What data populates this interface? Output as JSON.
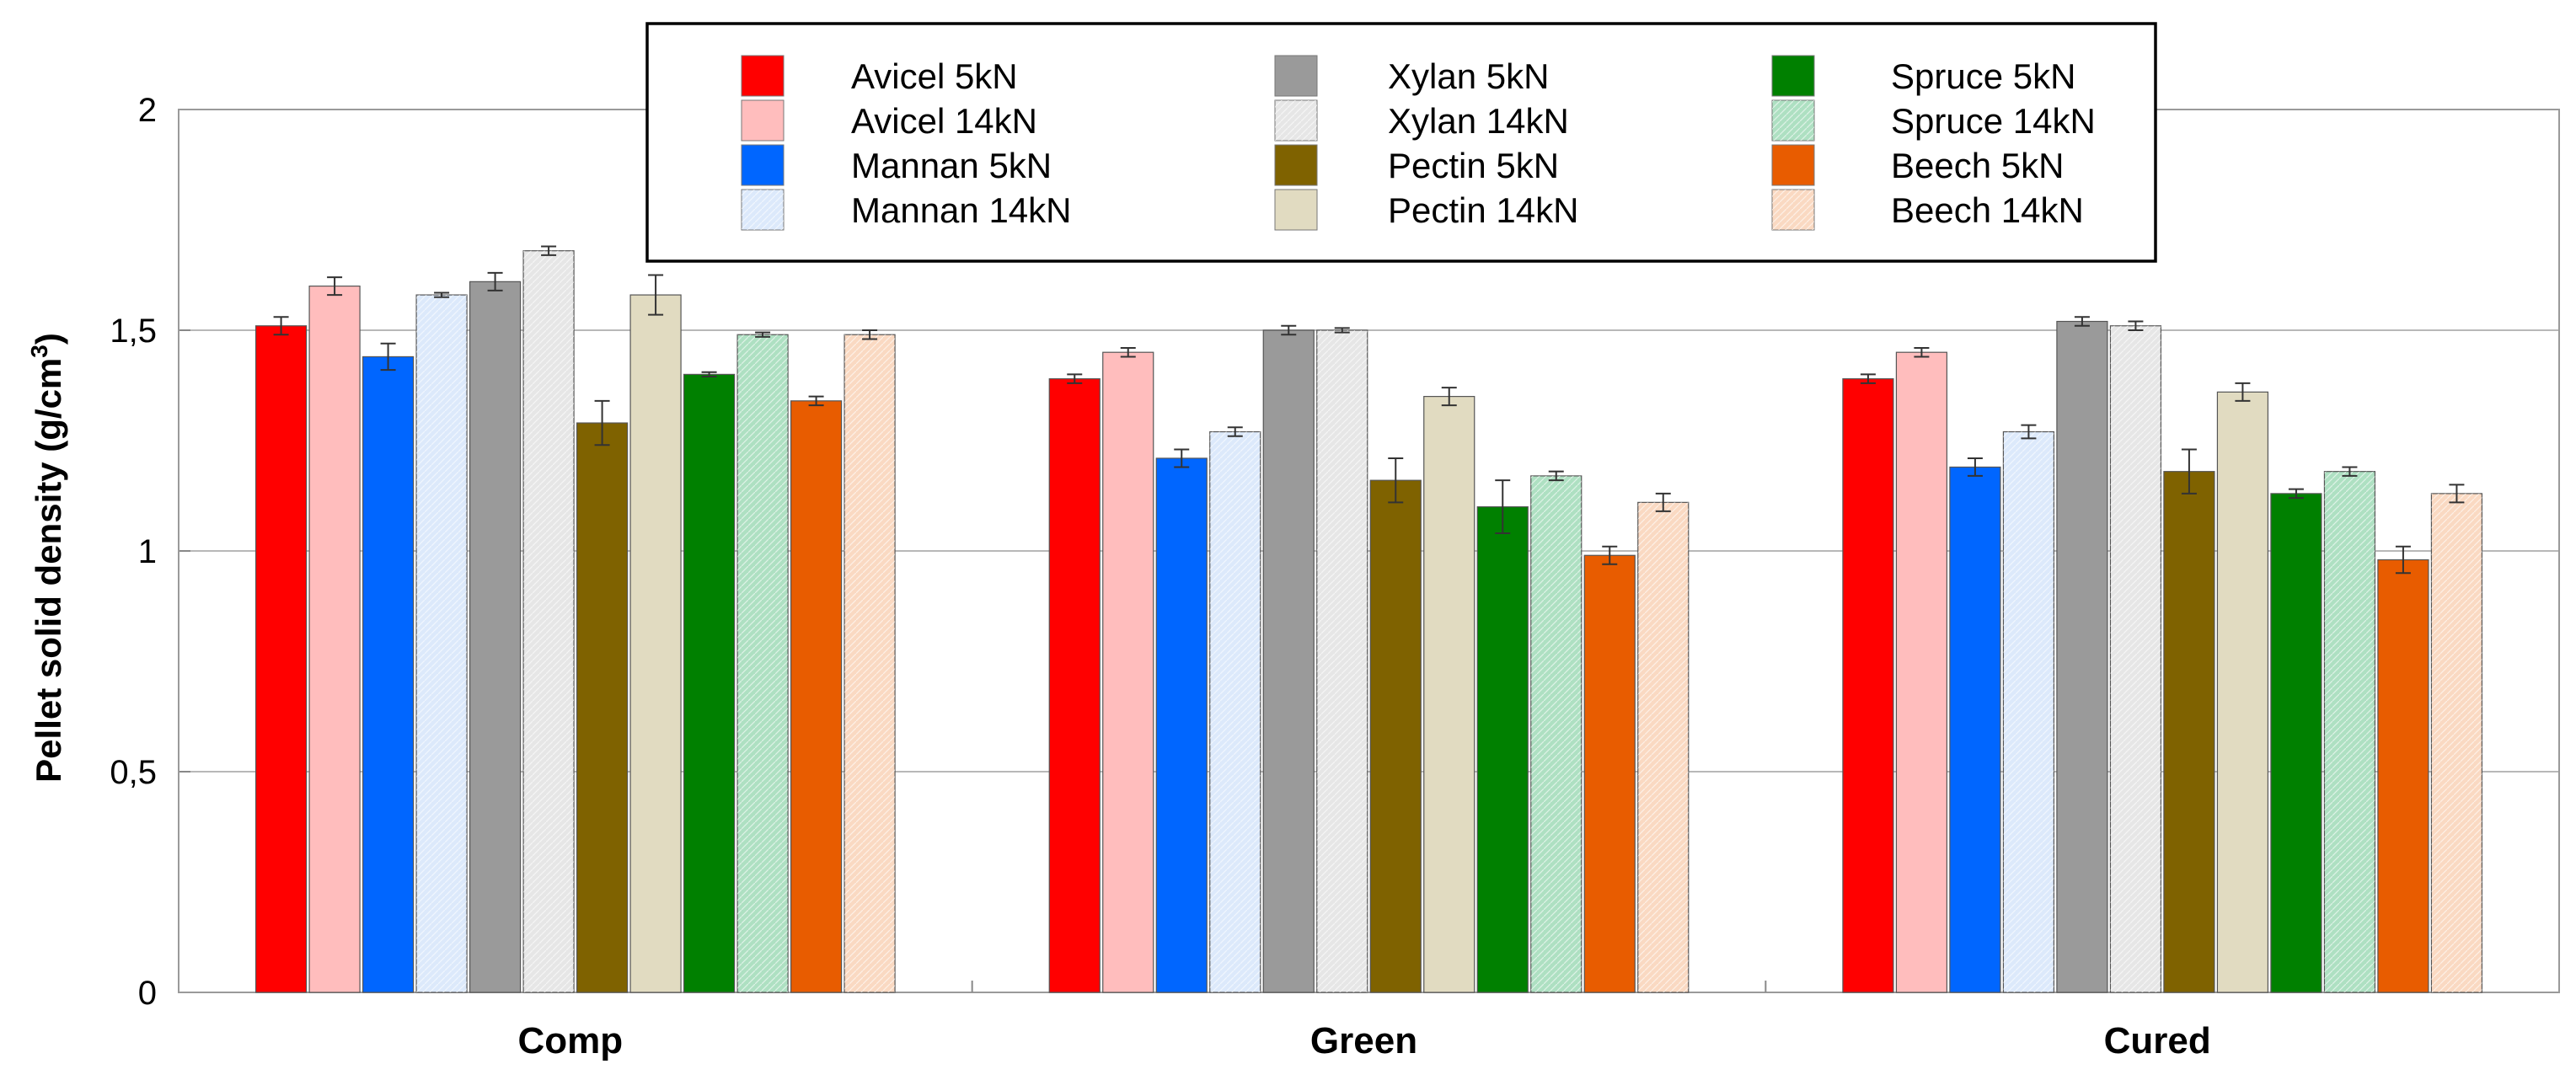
{
  "chart_data": {
    "type": "bar",
    "title": "",
    "xlabel": "",
    "ylabel": "Pellet solid density (g/cm",
    "ylabel_superscript": "3",
    "ylabel_close": ")",
    "ylim": [
      0,
      2
    ],
    "yticks": [
      0,
      0.5,
      1,
      1.5,
      2
    ],
    "ytick_labels": [
      "0",
      "0,5",
      "1",
      "1,5",
      "2"
    ],
    "grid": true,
    "legend_position": "top-center",
    "categories": [
      "Comp",
      "Green",
      "Cured"
    ],
    "series": [
      {
        "name": "Avicel 5kN",
        "color": "#ff0000",
        "hatch": false,
        "values": [
          1.51,
          1.39,
          1.39
        ],
        "errors": [
          0.02,
          0.01,
          0.01
        ]
      },
      {
        "name": "Avicel 14kN",
        "color": "#ffbdbd",
        "hatch": false,
        "values": [
          1.6,
          1.45,
          1.45
        ],
        "errors": [
          0.02,
          0.01,
          0.01
        ]
      },
      {
        "name": "Mannan 5kN",
        "color": "#0066ff",
        "hatch": false,
        "values": [
          1.44,
          1.21,
          1.19
        ],
        "errors": [
          0.03,
          0.02,
          0.02
        ]
      },
      {
        "name": "Mannan 14kN",
        "color": "#dce9fb",
        "hatch": true,
        "values": [
          1.58,
          1.27,
          1.27
        ],
        "errors": [
          0.005,
          0.01,
          0.015
        ]
      },
      {
        "name": "Xylan 5kN",
        "color": "#9a9a9a",
        "hatch": false,
        "values": [
          1.61,
          1.5,
          1.52
        ],
        "errors": [
          0.02,
          0.01,
          0.01
        ]
      },
      {
        "name": "Xylan 14kN",
        "color": "#e6e6e6",
        "hatch": true,
        "values": [
          1.68,
          1.5,
          1.51
        ],
        "errors": [
          0.01,
          0.005,
          0.01
        ]
      },
      {
        "name": "Pectin 5kN",
        "color": "#7f6200",
        "hatch": false,
        "values": [
          1.29,
          1.16,
          1.18
        ],
        "errors": [
          0.05,
          0.05,
          0.05
        ]
      },
      {
        "name": "Pectin 14kN",
        "color": "#e1dbc1",
        "hatch": false,
        "values": [
          1.58,
          1.35,
          1.36
        ],
        "errors": [
          0.045,
          0.02,
          0.02
        ]
      },
      {
        "name": "Spruce 5kN",
        "color": "#008000",
        "hatch": false,
        "values": [
          1.4,
          1.1,
          1.13
        ],
        "errors": [
          0.005,
          0.06,
          0.01
        ]
      },
      {
        "name": "Spruce 14kN",
        "color": "#aee0c2",
        "hatch": true,
        "values": [
          1.49,
          1.17,
          1.18
        ],
        "errors": [
          0.005,
          0.01,
          0.01
        ]
      },
      {
        "name": "Beech 5kN",
        "color": "#e85c00",
        "hatch": false,
        "values": [
          1.34,
          0.99,
          0.98
        ],
        "errors": [
          0.01,
          0.02,
          0.03
        ]
      },
      {
        "name": "Beech 14kN",
        "color": "#fad9c2",
        "hatch": true,
        "values": [
          1.49,
          1.11,
          1.13
        ],
        "errors": [
          0.01,
          0.02,
          0.02
        ]
      }
    ]
  }
}
